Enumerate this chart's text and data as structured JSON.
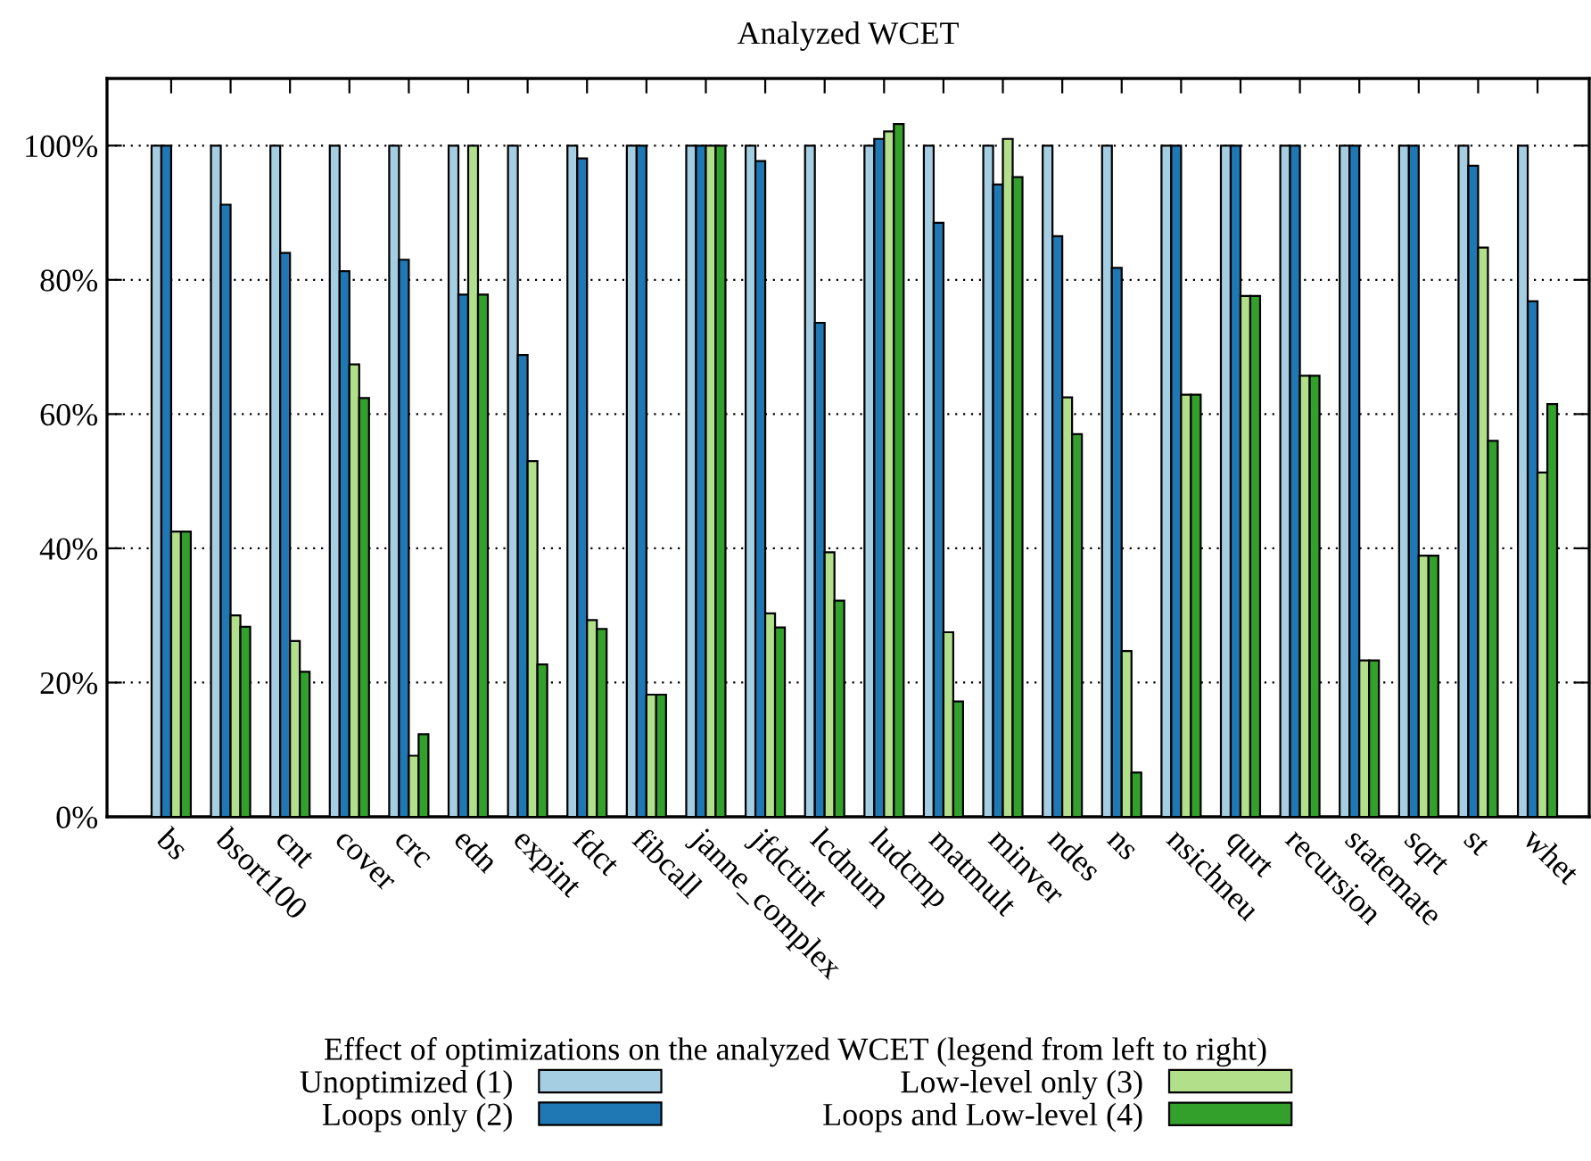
{
  "chart_data": {
    "type": "bar",
    "title": "Analyzed WCET",
    "categories": [
      "bs",
      "bsort100",
      "cnt",
      "cover",
      "crc",
      "edn",
      "expint",
      "fdct",
      "fibcall",
      "janne_complex",
      "jfdctint",
      "lcdnum",
      "ludcmp",
      "matmult",
      "minver",
      "ndes",
      "ns",
      "nsichneu",
      "qurt",
      "recursion",
      "statemate",
      "sqrt",
      "st",
      "whet"
    ],
    "series": [
      {
        "name": "Unoptimized (1)",
        "color": "#a6cee3",
        "values": [
          100,
          100,
          100,
          100,
          100,
          100,
          100,
          100,
          100,
          100,
          100,
          100,
          100,
          100,
          100,
          100,
          100,
          100,
          100,
          100,
          100,
          100,
          100,
          100
        ]
      },
      {
        "name": "Loops only (2)",
        "color": "#1f78b4",
        "values": [
          100,
          91.2,
          84,
          81.3,
          83,
          77.8,
          68.8,
          98.1,
          100,
          100,
          97.7,
          73.6,
          101,
          88.5,
          94.2,
          86.5,
          81.8,
          100,
          100,
          100,
          100,
          100,
          97,
          76.8
        ]
      },
      {
        "name": "Low-level only (3)",
        "color": "#b2df8a",
        "values": [
          42.5,
          30,
          26.2,
          67.4,
          9.1,
          100,
          53,
          29.3,
          18.2,
          100,
          30.3,
          39.4,
          102.1,
          27.5,
          101,
          62.5,
          24.7,
          62.9,
          77.6,
          65.7,
          23.3,
          38.9,
          84.8,
          51.3
        ]
      },
      {
        "name": "Loops and Low-level (4)",
        "color": "#33a02c",
        "values": [
          42.5,
          28.3,
          21.6,
          62.4,
          12.3,
          77.8,
          22.7,
          28,
          18.2,
          100,
          28.2,
          32.2,
          103.2,
          17.2,
          95.3,
          57,
          6.6,
          62.9,
          77.6,
          65.7,
          23.3,
          38.9,
          56,
          61.5
        ]
      }
    ],
    "ylim": [
      0,
      110
    ],
    "yticks": [
      {
        "value": 0,
        "label": "0%"
      },
      {
        "value": 20,
        "label": "20%"
      },
      {
        "value": 40,
        "label": "40%"
      },
      {
        "value": 60,
        "label": "60%"
      },
      {
        "value": 80,
        "label": "80%"
      },
      {
        "value": 100,
        "label": "100%"
      }
    ],
    "grid": "y",
    "legend": "bottom",
    "legend_title": "Effect of optimizations on the analyzed WCET (legend from left to right)"
  }
}
